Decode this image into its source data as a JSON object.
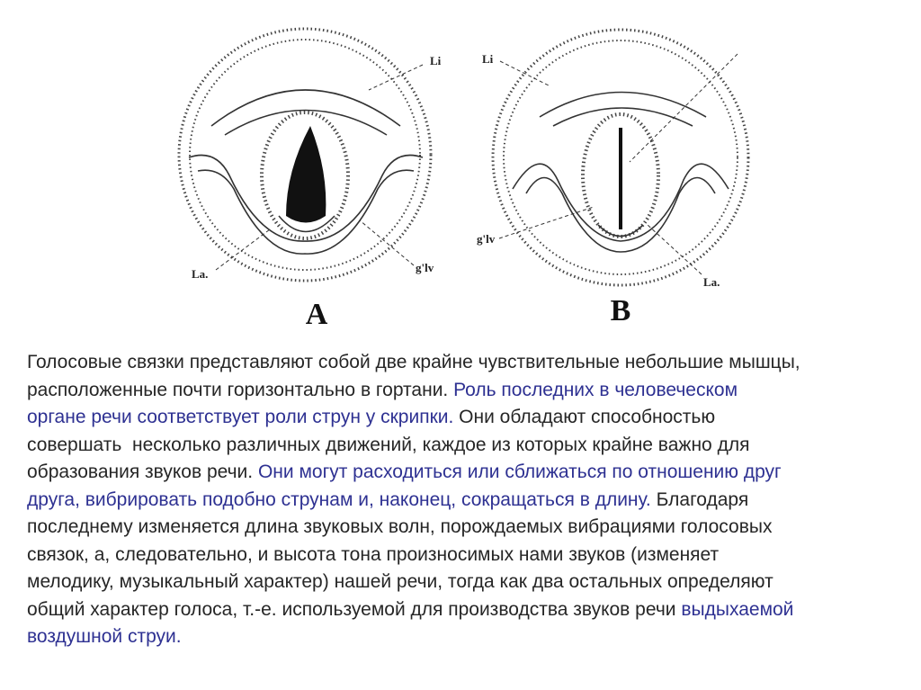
{
  "figures": [
    {
      "caption": "A",
      "labels": [
        "Li",
        "La.",
        "g'lv"
      ]
    },
    {
      "caption": "B",
      "labels": [
        "Li",
        "g'lv",
        "La."
      ]
    }
  ],
  "paragraph": {
    "lines": [
      [
        {
          "text": "Голосовые связки представляют собой две крайне чувствительные небольшие мышцы,",
          "color": "#262626"
        }
      ],
      [
        {
          "text": "расположенные почти горизонтально в гортани. ",
          "color": "#262626"
        },
        {
          "text": "Роль последних в человеческом",
          "color": "#2e3192"
        }
      ],
      [
        {
          "text": "органе речи соответствует роли струн у скрипки.",
          "color": "#2e3192"
        },
        {
          "text": " Они обладают способностью",
          "color": "#262626"
        }
      ],
      [
        {
          "text": "совершать  несколько различных движений, каждое из которых крайне важно для",
          "color": "#262626"
        }
      ],
      [
        {
          "text": "образования звуков речи. ",
          "color": "#262626"
        },
        {
          "text": "Они могут расходиться или сближаться по отношению друг",
          "color": "#2e3192"
        }
      ],
      [
        {
          "text": "друга, вибрировать подобно струнам и, наконец, сокращаться в длину.",
          "color": "#2e3192"
        },
        {
          "text": " Благодаря",
          "color": "#262626"
        }
      ],
      [
        {
          "text": "последнему изменяется длина звуковых волн, порождаемых вибрациями голосовых",
          "color": "#262626"
        }
      ],
      [
        {
          "text": "связок, а, следовательно, и высота тона произносимых нами звуков (изменяет",
          "color": "#262626"
        }
      ],
      [
        {
          "text": "мелодику, музыкальный характер) нашей речи, тогда как два остальных определяют",
          "color": "#262626"
        }
      ],
      [
        {
          "text": "общий характер голоса, т.-е. используемой для производства звуков речи ",
          "color": "#262626"
        },
        {
          "text": "выдыхаемой",
          "color": "#2e3192"
        }
      ],
      [
        {
          "text": "воздушной струи.",
          "color": "#2e3192"
        }
      ]
    ]
  }
}
